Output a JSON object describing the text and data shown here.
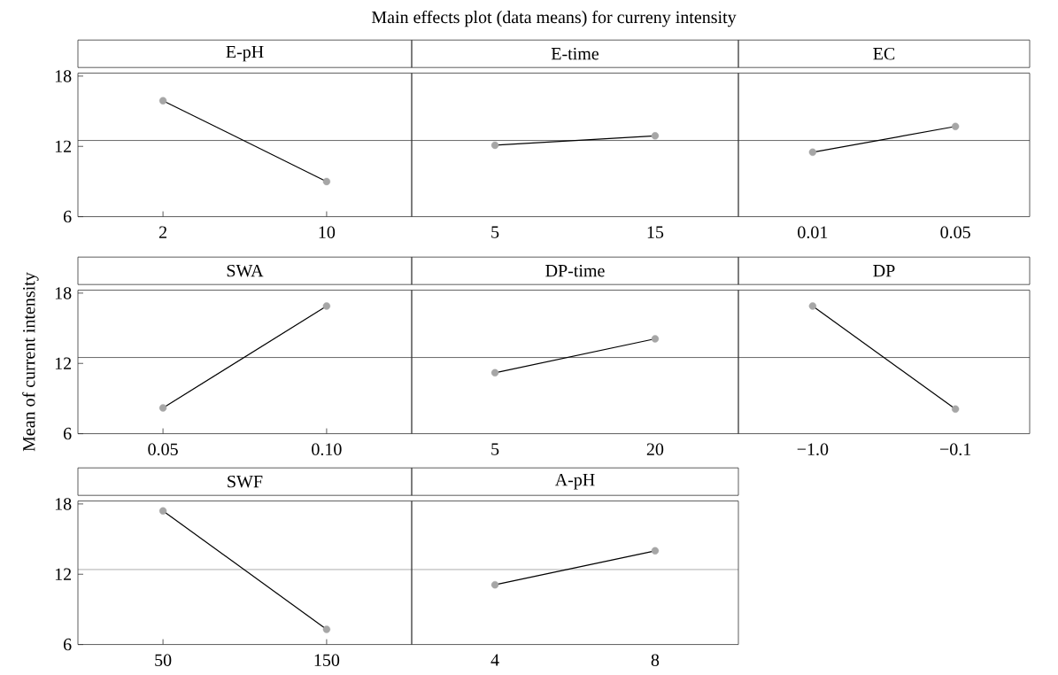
{
  "chart_data": [
    {
      "type": "line",
      "title": "E-pH",
      "annotations": [
        "Main effects plot (data means) for curreny intensity"
      ],
      "categories": [
        "2",
        "10"
      ],
      "values": [
        15.9,
        9.0
      ],
      "color": "#000000",
      "colors": [
        "#a6a6a6",
        "#a6a6a6"
      ],
      "marker": "circle",
      "ylim": [
        6,
        18.25
      ],
      "yticks": [
        6,
        12,
        18
      ],
      "ref_lines": [
        {
          "axis": "y",
          "value": 12.5
        }
      ]
    },
    {
      "type": "line",
      "title": "E-time",
      "categories": [
        "5",
        "15"
      ],
      "values": [
        12.1,
        12.9
      ],
      "color": "#000000",
      "colors": [
        "#a6a6a6",
        "#a6a6a6"
      ],
      "marker": "circle",
      "ylim": [
        6,
        18.25
      ],
      "yticks": [
        6,
        12,
        18
      ],
      "tick_labels": "x",
      "ref_lines": [
        {
          "axis": "y",
          "value": 12.5
        }
      ]
    },
    {
      "type": "line",
      "title": "EC",
      "categories": [
        "0.01",
        "0.05"
      ],
      "values": [
        11.5,
        13.7
      ],
      "color": "#000000",
      "colors": [
        "#a6a6a6",
        "#a6a6a6"
      ],
      "marker": "circle",
      "ylim": [
        6,
        18.25
      ],
      "yticks": [
        6,
        12,
        18
      ],
      "tick_labels": "x",
      "ref_lines": [
        {
          "axis": "y",
          "value": 12.5
        }
      ]
    },
    {
      "type": "line",
      "title": "SWA",
      "ylabel": "Mean of current intensity",
      "categories": [
        "0.05",
        "0.10"
      ],
      "values": [
        8.2,
        16.9
      ],
      "color": "#000000",
      "colors": [
        "#a6a6a6",
        "#a6a6a6"
      ],
      "marker": "circle",
      "ylim": [
        6,
        18.25
      ],
      "yticks": [
        6,
        12,
        18
      ],
      "ref_lines": [
        {
          "axis": "y",
          "value": 12.5
        }
      ]
    },
    {
      "type": "line",
      "title": "DP-time",
      "categories": [
        "5",
        "20"
      ],
      "values": [
        11.2,
        14.1
      ],
      "color": "#000000",
      "colors": [
        "#a6a6a6",
        "#a6a6a6"
      ],
      "marker": "circle",
      "ylim": [
        6,
        18.25
      ],
      "yticks": [
        6,
        12,
        18
      ],
      "tick_labels": "x",
      "ref_lines": [
        {
          "axis": "y",
          "value": 12.5
        }
      ]
    },
    {
      "type": "line",
      "title": "DP",
      "categories": [
        "−1.0",
        "−0.1"
      ],
      "values": [
        16.9,
        8.1
      ],
      "color": "#000000",
      "colors": [
        "#a6a6a6",
        "#a6a6a6"
      ],
      "marker": "circle",
      "ylim": [
        6,
        18.25
      ],
      "yticks": [
        6,
        12,
        18
      ],
      "tick_labels": "x",
      "ref_lines": [
        {
          "axis": "y",
          "value": 12.5
        }
      ]
    },
    {
      "type": "line",
      "title": "SWF",
      "categories": [
        "50",
        "150"
      ],
      "values": [
        17.4,
        7.3
      ],
      "color": "#000000",
      "colors": [
        "#a6a6a6",
        "#a6a6a6"
      ],
      "marker": "circle",
      "ylim": [
        6,
        18.25
      ],
      "yticks": [
        6,
        12,
        18
      ],
      "ref_lines": [
        {
          "axis": "y",
          "value": 12.4
        }
      ]
    },
    {
      "type": "line",
      "title": "A-pH",
      "categories": [
        "4",
        "8"
      ],
      "values": [
        11.1,
        14.0
      ],
      "color": "#000000",
      "colors": [
        "#a6a6a6",
        "#a6a6a6"
      ],
      "marker": "circle",
      "ylim": [
        6,
        18.25
      ],
      "yticks": [
        6,
        12,
        18
      ],
      "tick_labels": "x",
      "ref_lines": [
        {
          "axis": "y",
          "value": 12.4
        }
      ]
    }
  ]
}
